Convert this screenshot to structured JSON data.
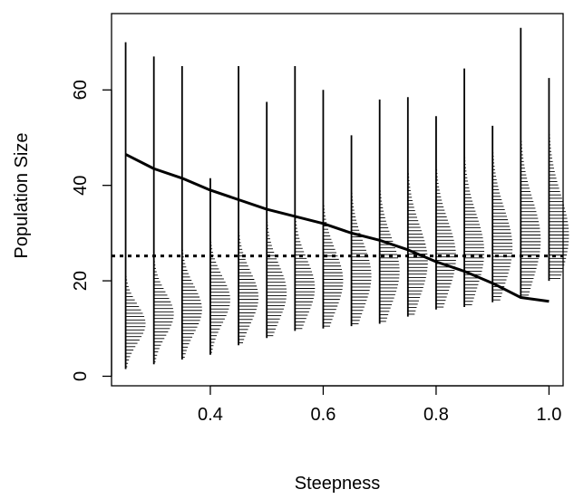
{
  "chart_data": {
    "type": "line",
    "title": "",
    "xlabel": "Steepness",
    "ylabel": "Population Size",
    "xlim": [
      0.225,
      1.025
    ],
    "ylim": [
      -2,
      76
    ],
    "x_ticks": [
      0.4,
      0.6,
      0.8,
      1.0
    ],
    "x_tick_labels": [
      "0.4",
      "0.6",
      "0.8",
      "1.0"
    ],
    "y_ticks": [
      0,
      20,
      40,
      60
    ],
    "y_tick_labels": [
      "0",
      "20",
      "40",
      "60"
    ],
    "grid": false,
    "legend": "none",
    "series": [
      {
        "style": "solid",
        "x": [
          0.25,
          0.3,
          0.35,
          0.4,
          0.45,
          0.5,
          0.55,
          0.6,
          0.65,
          0.7,
          0.75,
          0.8,
          0.85,
          0.9,
          0.95,
          1.0
        ],
        "y": [
          46.5,
          43.5,
          41.5,
          39.0,
          37.0,
          35.0,
          33.5,
          32.0,
          30.0,
          28.5,
          26.5,
          24.0,
          22.0,
          19.5,
          16.5,
          15.7
        ]
      }
    ],
    "reference_lines": [
      {
        "style": "dotted",
        "y": 25.2
      }
    ],
    "distributions": [
      {
        "x": 0.25,
        "min": 1.5,
        "max": 70,
        "center": 11,
        "spread": 4
      },
      {
        "x": 0.3,
        "min": 2.5,
        "max": 67,
        "center": 13,
        "spread": 4.5
      },
      {
        "x": 0.35,
        "min": 3.5,
        "max": 65,
        "center": 14,
        "spread": 5
      },
      {
        "x": 0.4,
        "min": 4.5,
        "max": 41.5,
        "center": 16,
        "spread": 5
      },
      {
        "x": 0.45,
        "min": 6.5,
        "max": 65,
        "center": 16.5,
        "spread": 5.5
      },
      {
        "x": 0.5,
        "min": 8,
        "max": 57.5,
        "center": 17.5,
        "spread": 6
      },
      {
        "x": 0.55,
        "min": 9.5,
        "max": 65,
        "center": 18.5,
        "spread": 6
      },
      {
        "x": 0.6,
        "min": 10,
        "max": 60,
        "center": 20,
        "spread": 6.5
      },
      {
        "x": 0.65,
        "min": 10.5,
        "max": 50.5,
        "center": 21,
        "spread": 7
      },
      {
        "x": 0.7,
        "min": 11,
        "max": 58,
        "center": 22,
        "spread": 7
      },
      {
        "x": 0.75,
        "min": 12.5,
        "max": 58.5,
        "center": 24,
        "spread": 7.5
      },
      {
        "x": 0.8,
        "min": 14,
        "max": 54.5,
        "center": 25,
        "spread": 7.5
      },
      {
        "x": 0.85,
        "min": 14.5,
        "max": 64.5,
        "center": 26,
        "spread": 8
      },
      {
        "x": 0.9,
        "min": 15.5,
        "max": 52.5,
        "center": 27,
        "spread": 8
      },
      {
        "x": 0.95,
        "min": 16.5,
        "max": 73,
        "center": 28.5,
        "spread": 8.5
      },
      {
        "x": 1.0,
        "min": 20,
        "max": 62.5,
        "center": 29.5,
        "spread": 8.5
      }
    ]
  }
}
